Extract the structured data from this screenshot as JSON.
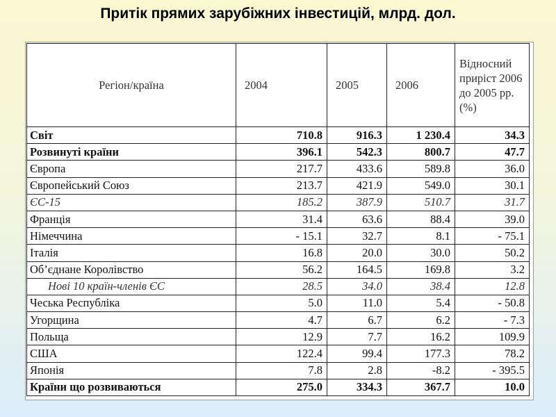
{
  "title": "Притік прямих зарубіжних інвестицій, млрд. дол.",
  "table": {
    "headers": [
      "Регіон/країна",
      "2004",
      "2005",
      "2006",
      "Відносний приріст 2006 до 2005 рр. (%)"
    ],
    "rows": [
      {
        "region": "Світ",
        "v2004": "710.8",
        "v2005": "916.3",
        "v2006": "1 230.4",
        "growth": "34.3",
        "style": "bold"
      },
      {
        "region": "Розвинуті країни",
        "v2004": "396.1",
        "v2005": "542.3",
        "v2006": "800.7",
        "growth": "47.7",
        "style": "bold"
      },
      {
        "region": "Європа",
        "v2004": "217.7",
        "v2005": "433.6",
        "v2006": "589.8",
        "growth": "36.0",
        "style": "normal"
      },
      {
        "region": "Європейський Союз",
        "v2004": "213.7",
        "v2005": "421.9",
        "v2006": "549.0",
        "growth": "30.1",
        "style": "normal"
      },
      {
        "region": "ЄС-15",
        "v2004": "185.2",
        "v2005": "387.9",
        "v2006": "510.7",
        "growth": "31.7",
        "style": "italic"
      },
      {
        "region": "Франція",
        "v2004": "31.4",
        "v2005": "63.6",
        "v2006": "88.4",
        "growth": "39.0",
        "style": "normal"
      },
      {
        "region": "Німеччина",
        "v2004": "- 15.1",
        "v2005": "32.7",
        "v2006": "8.1",
        "growth": "- 75.1",
        "style": "normal"
      },
      {
        "region": "Італія",
        "v2004": "16.8",
        "v2005": "20.0",
        "v2006": "30.0",
        "growth": "50.2",
        "style": "normal"
      },
      {
        "region": "Об’єднане Королівство",
        "v2004": "56.2",
        "v2005": "164.5",
        "v2006": "169.8",
        "growth": "3.2",
        "style": "normal"
      },
      {
        "region": "Нові 10 країн-членів ЄС",
        "v2004": "28.5",
        "v2005": "34.0",
        "v2006": "38.4",
        "growth": "12.8",
        "style": "italic-indent"
      },
      {
        "region": "Чеська Республіка",
        "v2004": "5.0",
        "v2005": "11.0",
        "v2006": "5.4",
        "growth": "- 50.8",
        "style": "normal"
      },
      {
        "region": "Угорщина",
        "v2004": "4.7",
        "v2005": "6.7",
        "v2006": "6.2",
        "growth": "- 7.3",
        "style": "normal"
      },
      {
        "region": "Польща",
        "v2004": "12.9",
        "v2005": "7.7",
        "v2006": "16.2",
        "growth": "109.9",
        "style": "normal"
      },
      {
        "region": "США",
        "v2004": "122.4",
        "v2005": "99.4",
        "v2006": "177.3",
        "growth": "78.2",
        "style": "normal"
      },
      {
        "region": "Японія",
        "v2004": "7.8",
        "v2005": "2.8",
        "v2006": "-8.2",
        "growth": "- 395.5",
        "style": "normal"
      },
      {
        "region": "Країни що розвиваються",
        "v2004": "275.0",
        "v2005": "334.3",
        "v2006": "367.7",
        "growth": "10.0",
        "style": "bold"
      }
    ]
  }
}
